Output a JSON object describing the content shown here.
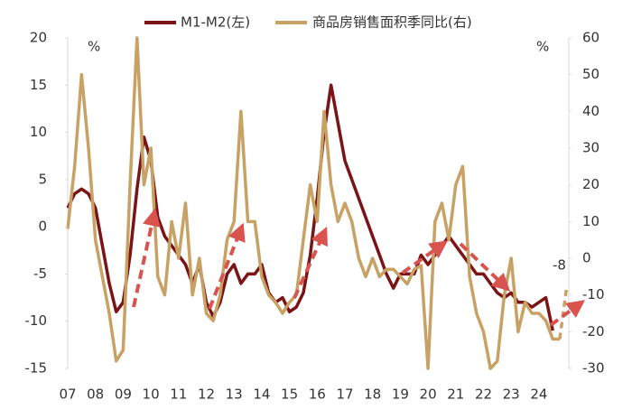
{
  "chart_data": {
    "type": "line",
    "categories": [
      "07",
      null,
      null,
      null,
      "08",
      null,
      null,
      null,
      "09",
      null,
      null,
      null,
      "10",
      null,
      null,
      null,
      "11",
      null,
      null,
      null,
      "12",
      null,
      null,
      null,
      "13",
      null,
      null,
      null,
      "14",
      null,
      null,
      null,
      "15",
      null,
      null,
      null,
      "16",
      null,
      null,
      null,
      "17",
      null,
      null,
      null,
      "18",
      null,
      null,
      null,
      "19",
      null,
      null,
      null,
      "20",
      null,
      null,
      null,
      "21",
      null,
      null,
      null,
      "22",
      null,
      null,
      null,
      "23",
      null,
      null,
      null,
      "24",
      null,
      null,
      null,
      null
    ],
    "series": [
      {
        "name": "M1-M2(左)",
        "color": "#7b1416",
        "values": [
          2,
          3.5,
          4,
          3.5,
          2,
          -2,
          -6,
          -9,
          -8,
          -3,
          4,
          9.5,
          7,
          1,
          -1,
          -2,
          -3,
          -4,
          -6,
          -4,
          -8,
          -9.5,
          -8,
          -5,
          -4,
          -6,
          -5,
          -5,
          -4,
          -7,
          -8,
          -7.5,
          -9,
          -8.5,
          -7,
          -3,
          3,
          10,
          15,
          11,
          7,
          5,
          3,
          1,
          -1,
          -3,
          -5,
          -6.5,
          -5,
          -5,
          -5,
          -3,
          -4,
          -3,
          -2,
          -1,
          -2,
          -3,
          -4,
          -5,
          -5,
          -6,
          -7,
          -7.5,
          -7,
          -8,
          -8,
          -8.5,
          -8,
          -7.5,
          -11,
          null,
          null
        ]
      },
      {
        "name": "商品房销售面积季同比(右)",
        "color": "#c8a165",
        "axis": "y2",
        "values": [
          8,
          25,
          50,
          30,
          5,
          -5,
          -15,
          -28,
          -25,
          20,
          60,
          20,
          30,
          -5,
          -10,
          10,
          0,
          15,
          -10,
          0,
          -15,
          -17,
          -10,
          5,
          10,
          40,
          10,
          10,
          -5,
          -10,
          -12,
          -15,
          -12,
          -10,
          5,
          20,
          10,
          40,
          20,
          10,
          15,
          10,
          0,
          -5,
          0,
          -5,
          -3,
          -3,
          -5,
          -7,
          -3,
          -2,
          -30,
          10,
          15,
          5,
          20,
          25,
          -5,
          -15,
          -20,
          -30,
          -28,
          -10,
          0,
          -20,
          -12,
          -15,
          -15,
          -17,
          -22,
          -22,
          -8
        ]
      }
    ],
    "ylim": [
      -15,
      20
    ],
    "yticks": [
      -15,
      -10,
      -5,
      0,
      5,
      10,
      15,
      20
    ],
    "y2lim": [
      -30,
      60
    ],
    "y2ticks": [
      -30,
      -20,
      -10,
      0,
      10,
      20,
      30,
      40,
      50,
      60
    ],
    "annotations": [
      "%",
      "%",
      "-8"
    ]
  }
}
